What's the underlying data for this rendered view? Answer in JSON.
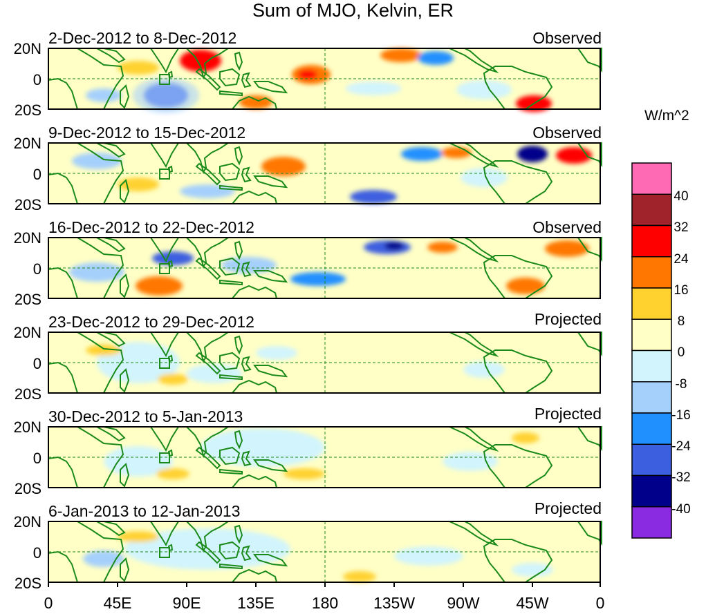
{
  "title": "Sum of MJO, Kelvin, ER",
  "panels": [
    {
      "date_range": "2-Dec-2012 to 8-Dec-2012",
      "kind": "Observed"
    },
    {
      "date_range": "9-Dec-2012 to 15-Dec-2012",
      "kind": "Observed"
    },
    {
      "date_range": "16-Dec-2012 to 22-Dec-2012",
      "kind": "Observed"
    },
    {
      "date_range": "23-Dec-2012 to 29-Dec-2012",
      "kind": "Projected"
    },
    {
      "date_range": "30-Dec-2012 to 5-Jan-2013",
      "kind": "Projected"
    },
    {
      "date_range": "6-Jan-2013 to 12-Jan-2013",
      "kind": "Projected"
    }
  ],
  "lat_labels": [
    "20N",
    "0",
    "20S"
  ],
  "lon_labels": [
    "0",
    "45E",
    "90E",
    "135E",
    "180",
    "135W",
    "90W",
    "45W",
    "0"
  ],
  "colorbar": {
    "units": "W/m^2",
    "levels": [
      "40",
      "32",
      "24",
      "16",
      "8",
      "0",
      "-8",
      "-16",
      "-24",
      "-32",
      "-40"
    ],
    "colors": [
      "#ff6ab4",
      "#a0222a",
      "#ff0000",
      "#ff7700",
      "#ffd230",
      "#ffffc6",
      "#d2f4fc",
      "#a6d0fc",
      "#2090ff",
      "#3c5fe0",
      "#00008a",
      "#8a2be2"
    ]
  },
  "map": {
    "land_outline_color": "#1a8a1a",
    "grid_color": "#1a8a1a"
  }
}
